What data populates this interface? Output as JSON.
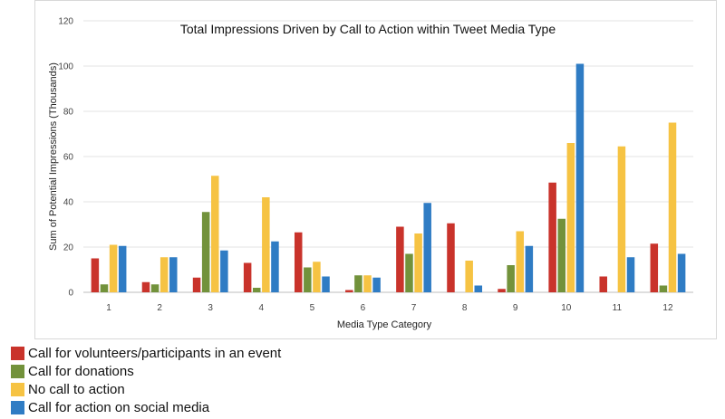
{
  "chart_data": {
    "type": "bar",
    "title": "Total Impressions Driven by Call to Action within Tweet Media Type",
    "xlabel": "Media Type Category",
    "ylabel": "Sum of Potential Impressions (Thousands)",
    "ylim": [
      0,
      120
    ],
    "yticks": [
      "0",
      "20",
      "40",
      "60",
      "80",
      "100",
      "120"
    ],
    "grid": true,
    "legend_position": "bottom-left",
    "categories": [
      "1",
      "2",
      "3",
      "4",
      "5",
      "6",
      "7",
      "8",
      "9",
      "10",
      "11",
      "12"
    ],
    "series": [
      {
        "name": "Call for volunteers/participants in an event",
        "color": "#c9332b",
        "values": [
          15,
          4.5,
          6.5,
          13,
          26.5,
          1,
          29,
          30.5,
          1.5,
          48.5,
          7,
          21.5
        ]
      },
      {
        "name": "Call for donations",
        "color": "#72923b",
        "values": [
          3.5,
          3.5,
          35.5,
          2,
          11,
          7.5,
          17,
          0,
          12,
          32.5,
          0,
          3
        ]
      },
      {
        "name": "No call to action",
        "color": "#f6c343",
        "values": [
          21,
          15.5,
          51.5,
          42,
          13.5,
          7.5,
          26,
          14,
          27,
          66,
          64.5,
          75
        ]
      },
      {
        "name": "Call for action on social media",
        "color": "#2f7cc4",
        "values": [
          20.5,
          15.5,
          18.5,
          22.5,
          7,
          6.5,
          39.5,
          3,
          20.5,
          101,
          15.5,
          17
        ]
      }
    ]
  }
}
